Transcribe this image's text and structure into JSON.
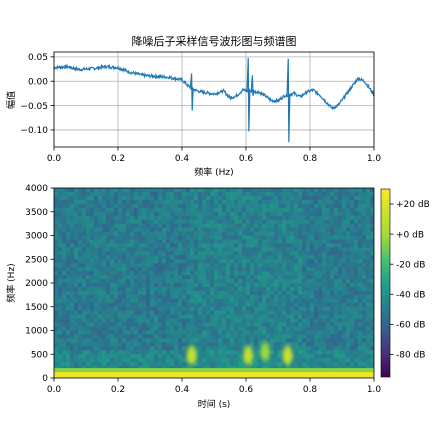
{
  "chart_data": [
    {
      "type": "line",
      "title": "降噪后子采样信号波形图与频谱图",
      "xlabel": "频率 (Hz)",
      "ylabel": "幅值",
      "xlim": [
        0.0,
        1.0
      ],
      "ylim": [
        -0.135,
        0.06
      ],
      "grid": true,
      "x_ticks": [
        "0.0",
        "0.2",
        "0.4",
        "0.6",
        "0.8",
        "1.0"
      ],
      "y_ticks": [
        "0.05",
        "0.00",
        "−0.05",
        "−0.10"
      ],
      "y_tick_values": [
        0.05,
        0.0,
        -0.05,
        -0.1
      ],
      "line_color": "#1f77b4",
      "baseline": [
        [
          0.0,
          0.028
        ],
        [
          0.04,
          0.03
        ],
        [
          0.08,
          0.024
        ],
        [
          0.12,
          0.026
        ],
        [
          0.16,
          0.03
        ],
        [
          0.2,
          0.028
        ],
        [
          0.24,
          0.018
        ],
        [
          0.28,
          0.012
        ],
        [
          0.32,
          0.01
        ],
        [
          0.36,
          0.008
        ],
        [
          0.4,
          0.003
        ],
        [
          0.42,
          -0.01
        ],
        [
          0.44,
          -0.018
        ],
        [
          0.46,
          -0.022
        ],
        [
          0.5,
          -0.026
        ],
        [
          0.53,
          -0.02
        ],
        [
          0.55,
          -0.034
        ],
        [
          0.57,
          -0.03
        ],
        [
          0.59,
          -0.018
        ],
        [
          0.61,
          -0.02
        ],
        [
          0.64,
          -0.022
        ],
        [
          0.66,
          -0.03
        ],
        [
          0.68,
          -0.04
        ],
        [
          0.7,
          -0.04
        ],
        [
          0.72,
          -0.03
        ],
        [
          0.75,
          -0.025
        ],
        [
          0.77,
          -0.032
        ],
        [
          0.79,
          -0.022
        ],
        [
          0.81,
          -0.018
        ],
        [
          0.83,
          -0.028
        ],
        [
          0.85,
          -0.042
        ],
        [
          0.87,
          -0.056
        ],
        [
          0.89,
          -0.048
        ],
        [
          0.91,
          -0.03
        ],
        [
          0.93,
          -0.012
        ],
        [
          0.95,
          0.006
        ],
        [
          0.97,
          0.0
        ],
        [
          0.99,
          -0.018
        ],
        [
          1.0,
          -0.028
        ]
      ],
      "spikes": [
        {
          "x": 0.43,
          "max": 0.016,
          "min": -0.06
        },
        {
          "x": 0.607,
          "max": 0.048,
          "min": -0.103
        },
        {
          "x": 0.62,
          "max": 0.012,
          "min": -0.03
        },
        {
          "x": 0.732,
          "max": 0.046,
          "min": -0.125
        }
      ]
    },
    {
      "type": "heatmap",
      "xlabel": "时间 (s)",
      "ylabel": "频率 (Hz)",
      "xlim": [
        0.0,
        1.0
      ],
      "ylim": [
        0,
        4000
      ],
      "x_ticks": [
        "0.0",
        "0.2",
        "0.4",
        "0.6",
        "0.8",
        "1.0"
      ],
      "y_ticks": [
        "0",
        "500",
        "1000",
        "1500",
        "2000",
        "2500",
        "3000",
        "3500",
        "4000"
      ],
      "y_tick_values": [
        0,
        500,
        1000,
        1500,
        2000,
        2500,
        3000,
        3500,
        4000
      ],
      "colormap": "viridis",
      "colorbar": {
        "range_db": [
          -95,
          30
        ],
        "ticks": [
          "+20 dB",
          "+0 dB",
          "-20 dB",
          "-40 dB",
          "-60 dB",
          "-80 dB"
        ],
        "tick_values": [
          20,
          0,
          -20,
          -40,
          -60,
          -80
        ]
      },
      "background_db": -50,
      "low_freq_band": {
        "freq_max": 80,
        "db": 25
      },
      "hotspots": [
        {
          "t": 0.43,
          "f": 480,
          "db": 8
        },
        {
          "t": 0.607,
          "f": 480,
          "db": 8
        },
        {
          "t": 0.66,
          "f": 560,
          "db": -5
        },
        {
          "t": 0.73,
          "f": 480,
          "db": 10
        }
      ]
    }
  ]
}
